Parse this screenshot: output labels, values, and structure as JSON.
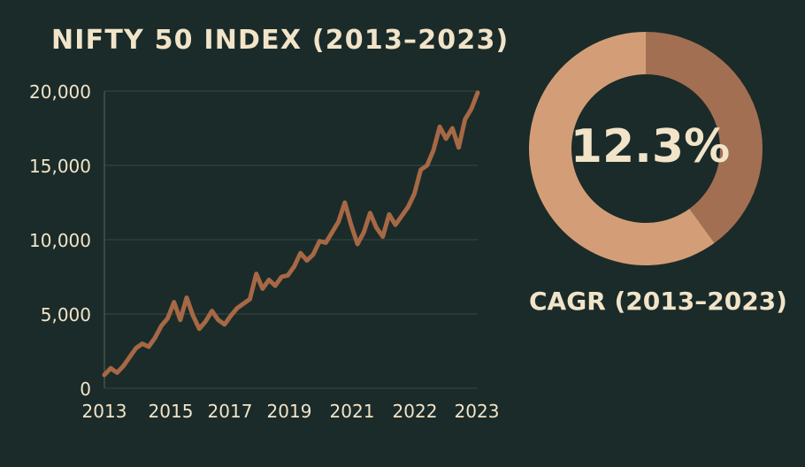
{
  "chart_data": [
    {
      "type": "line",
      "title": "NIFTY 50 INDEX (2013–2023)",
      "xlabel": "",
      "ylabel": "",
      "x_ticks": [
        "2013",
        "2015",
        "2017",
        "2019",
        "2021",
        "2022",
        "2023"
      ],
      "y_ticks": [
        "0",
        "5,000",
        "10,000",
        "15,000",
        "20,000"
      ],
      "ylim": [
        0,
        20000
      ],
      "grid": "horizontal",
      "series": [
        {
          "values": [
            900,
            1350,
            1050,
            1500,
            2100,
            2700,
            3000,
            2800,
            3400,
            4200,
            4700,
            5800,
            4600,
            6100,
            4900,
            4000,
            4500,
            5200,
            4600,
            4300,
            4900,
            5400,
            5700,
            6000,
            7700,
            6700,
            7300,
            6900,
            7500,
            7600,
            8200,
            9100,
            8600,
            9000,
            9900,
            9800,
            10500,
            11200,
            12500,
            11000,
            9700,
            10500,
            11800,
            10800,
            10200,
            11700,
            11000,
            11600,
            12200,
            13100,
            14700,
            15000,
            16000,
            17600,
            16800,
            17500,
            16200,
            18100,
            18800,
            19900
          ],
          "color": "#a66845"
        }
      ]
    },
    {
      "type": "pie",
      "title": "CAGR (2013–2023)",
      "center_label": "12.3%",
      "slices": [
        {
          "value": 0.4,
          "color": "#a36f52"
        },
        {
          "value": 0.6,
          "color": "#d39e77"
        }
      ]
    }
  ],
  "colors": {
    "background": "#1b2b29",
    "text": "#f1e4c9",
    "grid": "#344743",
    "line": "#a66845",
    "donut_light": "#d39e77",
    "donut_dark": "#a36f52"
  }
}
